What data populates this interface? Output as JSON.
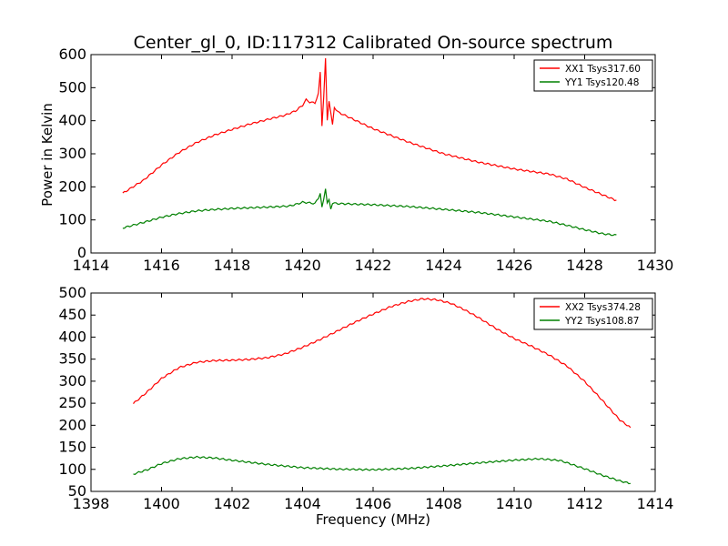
{
  "figure": {
    "title": "Center_gl_0, ID:117312 Calibrated On-source spectrum",
    "ylabel": "Power in Kelvin",
    "xlabel": "Frequency (MHz)"
  },
  "chart_data": [
    {
      "type": "line",
      "title": "Center_gl_0, ID:117312 Calibrated On-source spectrum",
      "ylabel": "Power in Kelvin",
      "xlabel": "",
      "xlim": [
        1414,
        1430
      ],
      "ylim": [
        0,
        600
      ],
      "xticks": [
        "1414",
        "1416",
        "1418",
        "1420",
        "1422",
        "1424",
        "1426",
        "1428",
        "1430"
      ],
      "yticks": [
        "0",
        "100",
        "200",
        "300",
        "400",
        "500",
        "600"
      ],
      "grid": false,
      "legend": "top-right",
      "series": [
        {
          "name": "XX1 Tsys317.60",
          "color": "#ff0000",
          "points": [
            [
              1414.9,
              180
            ],
            [
              1415.5,
              220
            ],
            [
              1416.0,
              265
            ],
            [
              1416.5,
              303
            ],
            [
              1417.0,
              333
            ],
            [
              1417.5,
              355
            ],
            [
              1418.0,
              372
            ],
            [
              1418.5,
              388
            ],
            [
              1419.0,
              402
            ],
            [
              1419.5,
              415
            ],
            [
              1419.8,
              428
            ],
            [
              1420.0,
              445
            ],
            [
              1420.1,
              462
            ],
            [
              1420.2,
              455
            ],
            [
              1420.35,
              452
            ],
            [
              1420.45,
              480
            ],
            [
              1420.5,
              545
            ],
            [
              1420.55,
              385
            ],
            [
              1420.6,
              470
            ],
            [
              1420.65,
              585
            ],
            [
              1420.7,
              400
            ],
            [
              1420.75,
              460
            ],
            [
              1420.85,
              385
            ],
            [
              1420.9,
              440
            ],
            [
              1421.0,
              425
            ],
            [
              1421.5,
              400
            ],
            [
              1422.0,
              375
            ],
            [
              1423.0,
              335
            ],
            [
              1424.0,
              300
            ],
            [
              1425.0,
              275
            ],
            [
              1426.0,
              255
            ],
            [
              1427.0,
              240
            ],
            [
              1427.5,
              225
            ],
            [
              1428.0,
              200
            ],
            [
              1428.5,
              178
            ],
            [
              1428.9,
              160
            ]
          ]
        },
        {
          "name": "YY1 Tsys120.48",
          "color": "#008000",
          "points": [
            [
              1414.9,
              75
            ],
            [
              1415.5,
              92
            ],
            [
              1416.0,
              107
            ],
            [
              1416.5,
              118
            ],
            [
              1417.0,
              126
            ],
            [
              1417.5,
              130
            ],
            [
              1418.0,
              133
            ],
            [
              1418.5,
              135
            ],
            [
              1419.0,
              137
            ],
            [
              1419.6,
              140
            ],
            [
              1419.8,
              145
            ],
            [
              1420.0,
              152
            ],
            [
              1420.2,
              150
            ],
            [
              1420.35,
              148
            ],
            [
              1420.45,
              165
            ],
            [
              1420.5,
              180
            ],
            [
              1420.55,
              135
            ],
            [
              1420.6,
              160
            ],
            [
              1420.65,
              195
            ],
            [
              1420.7,
              150
            ],
            [
              1420.75,
              158
            ],
            [
              1420.8,
              132
            ],
            [
              1420.85,
              150
            ],
            [
              1421.0,
              148
            ],
            [
              1422.0,
              145
            ],
            [
              1423.0,
              140
            ],
            [
              1424.0,
              132
            ],
            [
              1425.0,
              123
            ],
            [
              1426.0,
              110
            ],
            [
              1427.0,
              97
            ],
            [
              1427.5,
              85
            ],
            [
              1428.0,
              72
            ],
            [
              1428.5,
              60
            ],
            [
              1428.9,
              55
            ]
          ]
        }
      ]
    },
    {
      "type": "line",
      "title": "",
      "ylabel": "",
      "xlabel": "Frequency (MHz)",
      "xlim": [
        1398,
        1414
      ],
      "ylim": [
        50,
        500
      ],
      "xticks": [
        "1398",
        "1400",
        "1402",
        "1404",
        "1406",
        "1408",
        "1410",
        "1412",
        "1414"
      ],
      "yticks": [
        "50",
        "100",
        "150",
        "200",
        "250",
        "300",
        "350",
        "400",
        "450",
        "500"
      ],
      "grid": false,
      "legend": "top-right",
      "series": [
        {
          "name": "XX2 Tsys374.28",
          "color": "#ff0000",
          "points": [
            [
              1399.2,
              248
            ],
            [
              1399.6,
              275
            ],
            [
              1400.0,
              305
            ],
            [
              1400.5,
              330
            ],
            [
              1401.0,
              342
            ],
            [
              1401.5,
              346
            ],
            [
              1402.0,
              347
            ],
            [
              1402.5,
              349
            ],
            [
              1403.0,
              353
            ],
            [
              1403.5,
              362
            ],
            [
              1404.0,
              377
            ],
            [
              1404.5,
              395
            ],
            [
              1405.0,
              415
            ],
            [
              1405.5,
              435
            ],
            [
              1406.0,
              453
            ],
            [
              1406.5,
              470
            ],
            [
              1407.0,
              482
            ],
            [
              1407.4,
              488
            ],
            [
              1407.8,
              486
            ],
            [
              1408.2,
              478
            ],
            [
              1408.6,
              463
            ],
            [
              1409.0,
              445
            ],
            [
              1409.5,
              420
            ],
            [
              1410.0,
              398
            ],
            [
              1410.5,
              380
            ],
            [
              1411.0,
              360
            ],
            [
              1411.5,
              335
            ],
            [
              1412.0,
              300
            ],
            [
              1412.5,
              257
            ],
            [
              1413.0,
              212
            ],
            [
              1413.3,
              195
            ]
          ]
        },
        {
          "name": "YY2 Tsys108.87",
          "color": "#008000",
          "points": [
            [
              1399.2,
              88
            ],
            [
              1399.6,
              98
            ],
            [
              1400.0,
              112
            ],
            [
              1400.5,
              123
            ],
            [
              1401.0,
              127
            ],
            [
              1401.5,
              125
            ],
            [
              1402.0,
              120
            ],
            [
              1403.0,
              111
            ],
            [
              1404.0,
              104
            ],
            [
              1405.0,
              101
            ],
            [
              1406.0,
              100
            ],
            [
              1407.0,
              103
            ],
            [
              1408.0,
              109
            ],
            [
              1409.0,
              116
            ],
            [
              1410.0,
              122
            ],
            [
              1410.7,
              125
            ],
            [
              1411.3,
              121
            ],
            [
              1412.0,
              102
            ],
            [
              1412.5,
              87
            ],
            [
              1413.0,
              74
            ],
            [
              1413.3,
              68
            ]
          ]
        }
      ]
    }
  ]
}
